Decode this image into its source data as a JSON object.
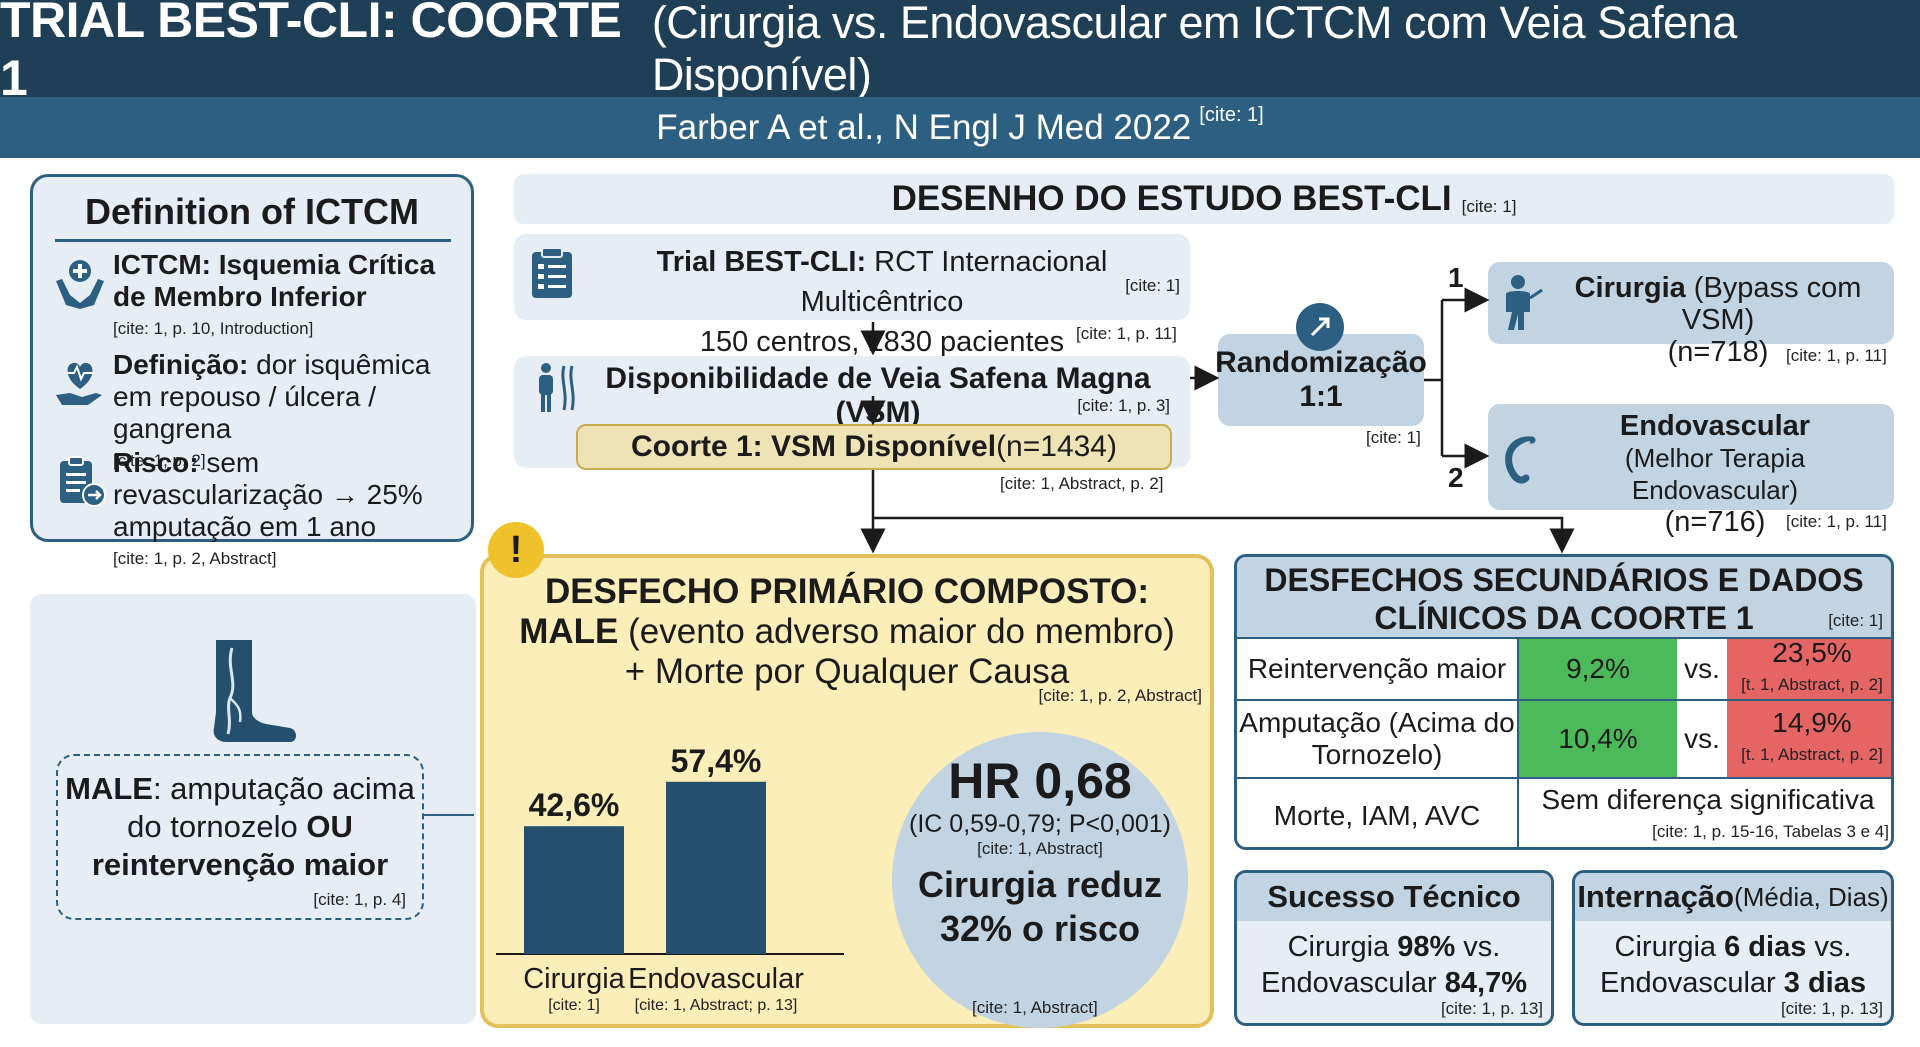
{
  "header": {
    "title_bold": "TRIAL BEST-CLI: COORTE 1",
    "title_rest": "(Cirurgia vs. Endovascular em ICTCM com Veia Safena Disponível)",
    "subtitle": "Farber A et al., N Engl J Med 2022",
    "subtitle_cite": "[cite: 1]"
  },
  "definition": {
    "title": "Definition of ICTCM",
    "items": [
      {
        "icon": "hands-care-icon",
        "bold": "ICTCM: Isquemia Crítica de Membro Inferior",
        "text": "",
        "cite": "[cite: 1, p. 10, Introduction]"
      },
      {
        "icon": "heart-pulse-hand-icon",
        "bold": "Definição:",
        "text": " dor isquêmica em repouso / úlcera / gangrena",
        "cite": "[cite: 1, p. 2]"
      },
      {
        "icon": "clipboard-risk-icon",
        "bold": "Risco:",
        "text": " sem revascularização → 25% amputação em 1 ano",
        "cite": "[cite: 1, p. 2, Abstract]"
      }
    ]
  },
  "male_def": {
    "bold1": "MALE",
    "text1": ": amputação acima do tornozelo ",
    "bold2": "OU reintervenção maior",
    "cite": "[cite: 1, p. 4]"
  },
  "design": {
    "title": "DESENHO DO ESTUDO BEST-CLI",
    "title_cite": "[cite: 1]",
    "trial_bold": "Trial BEST-CLI:",
    "trial_text": " RCT Internacional Multicêntrico",
    "trial_line2": "150 centros, 1830 pacientes",
    "trial_cite_inner": "[cite: 1]",
    "trial_cite_below": "[cite: 1, p. 11]",
    "vsm_text": "Disponibilidade de Veia Safena Magna (VSM)",
    "vsm_cite": "[cite: 1, p. 3]",
    "coorte_bold": "Coorte 1: VSM Disponível",
    "coorte_text": " (n=1434)",
    "coorte_cite": "[cite: 1, Abstract, p. 2]",
    "rand_line1": "Randomização",
    "rand_line2": "1:1",
    "rand_cite": "[cite: 1]",
    "arm1_num": "1",
    "arm2_num": "2",
    "cirurgia_bold": "Cirurgia",
    "cirurgia_text": " (Bypass com VSM)",
    "cirurgia_n": "(n=718)",
    "cirurgia_cite": "[cite: 1, p. 11]",
    "endo_bold": "Endovascular",
    "endo_text": "(Melhor Terapia Endovascular)",
    "endo_n": "(n=716)",
    "endo_cite": "[cite: 1, p. 11]"
  },
  "primary": {
    "warn": "!",
    "title_line1": "DESFECHO PRIMÁRIO COMPOSTO:",
    "title_line2_bold": "MALE",
    "title_line2_text": " (evento adverso maior do membro)",
    "title_line3": "+ Morte por Qualquer Causa",
    "cite": "[cite: 1, p. 2, Abstract]",
    "hr": "HR 0,68",
    "hr_ci": "(IC 0,59-0,79; P<0,001)",
    "hr_cite": "[cite: 1, Abstract]",
    "conclusion_line1": "Cirurgia reduz",
    "conclusion_line2": "32% o risco",
    "circle_cite": "[cite: 1, Abstract]"
  },
  "chart_data": {
    "type": "bar",
    "categories": [
      "Cirurgia",
      "Endovascular"
    ],
    "values": [
      42.6,
      57.4
    ],
    "value_labels": [
      "42,6%",
      "57,4%"
    ],
    "category_cites": [
      "[cite: 1]",
      "[cite: 1, Abstract; p. 13]"
    ],
    "color": "#24506d"
  },
  "secondary": {
    "title_line1": "DESFECHOS SECUNDÁRIOS E DADOS",
    "title_line2": "CLÍNICOS DA COORTE 1",
    "title_cite": "[cite: 1]",
    "vs": "vs.",
    "rows": [
      {
        "label": "Reintervenção maior",
        "cir": "9,2%",
        "endo": "23,5%",
        "cite": "[t. 1, Abstract, p. 2]"
      },
      {
        "label": "Amputação (Acima do Tornozelo)",
        "cir": "10,4%",
        "endo": "14,9%",
        "cite": "[t. 1, Abstract, p. 2]"
      }
    ],
    "last_label": "Morte, IAM, AVC",
    "last_value": "Sem diferença significativa",
    "last_cite": "[cite: 1, p. 15-16, Tabelas 3 e 4]",
    "green": "#4cba5a",
    "red": "#e56565"
  },
  "tech": {
    "title": "Sucesso Técnico",
    "line1_text": "Cirurgia ",
    "line1_bold": "98%",
    "line1_tail": " vs.",
    "line2_text": "Endovascular ",
    "line2_bold": "84,7%",
    "cite": "[cite: 1, p. 13]"
  },
  "stay": {
    "title_bold": "Internação",
    "title_text": " (Média, Dias)",
    "line1_text": "Cirurgia ",
    "line1_bold": "6 dias",
    "line1_tail": " vs.",
    "line2_text": "Endovascular ",
    "line2_bold": "3 dias",
    "cite": "[cite: 1, p. 13]"
  }
}
